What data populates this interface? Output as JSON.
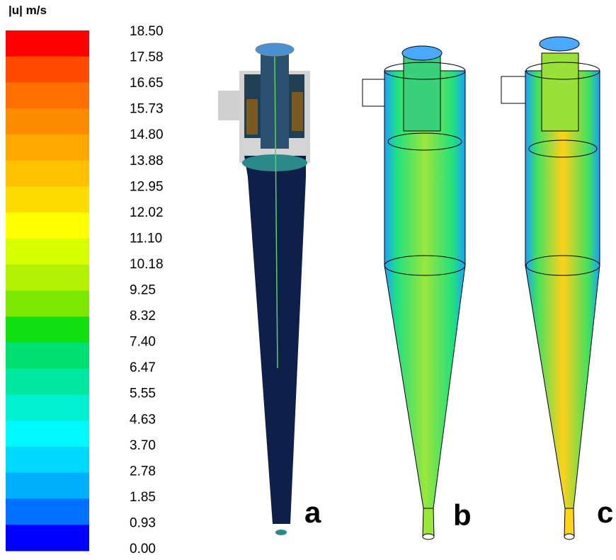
{
  "legend": {
    "title": "|u| m/s",
    "ticks": [
      "18.50",
      "17.58",
      "16.65",
      "15.73",
      "14.80",
      "13.88",
      "12.95",
      "12.02",
      "11.10",
      "10.18",
      "9.25",
      "8.32",
      "7.40",
      "6.47",
      "5.55",
      "4.63",
      "3.70",
      "2.78",
      "1.85",
      "0.93",
      "0.00"
    ]
  },
  "panels": [
    {
      "label": "a"
    },
    {
      "label": "b"
    },
    {
      "label": "c"
    }
  ]
}
